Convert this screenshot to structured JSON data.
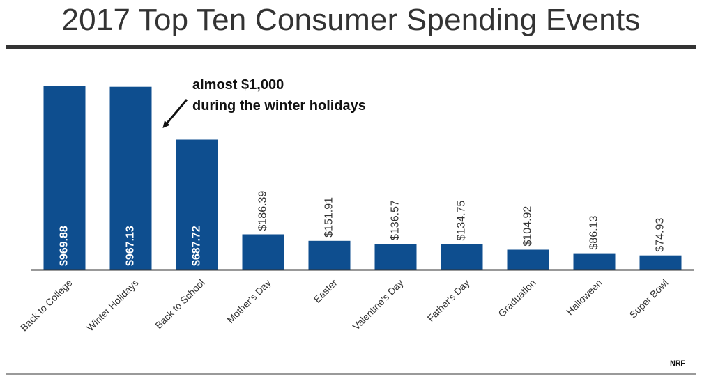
{
  "title": "2017 Top Ten Consumer Spending Events",
  "annotation": {
    "line1": "almost $1,000",
    "line2": "during the winter holidays"
  },
  "source": "NRF",
  "colors": {
    "bar": "#0e4e8f",
    "title": "#333333",
    "axis": "#333333",
    "label": "#333333",
    "inside_label": "#ffffff"
  },
  "chart_data": {
    "type": "bar",
    "title": "2017 Top Ten Consumer Spending Events",
    "xlabel": "",
    "ylabel": "",
    "ylim": [
      0,
      1000
    ],
    "grid": false,
    "legend": "none",
    "categories": [
      "Back to College",
      "Winter Holidays",
      "Back to School",
      "Mother's Day",
      "Easter",
      "Valentine's Day",
      "Father's Day",
      "Graduation",
      "Halloween",
      "Super Bowl"
    ],
    "values": [
      969.88,
      967.13,
      687.72,
      186.39,
      151.91,
      136.57,
      134.75,
      104.92,
      86.13,
      74.93
    ],
    "data_labels": [
      "$969.88",
      "$967.13",
      "$687.72",
      "$186.39",
      "$151.91",
      "$136.57",
      "$134.75",
      "$104.92",
      "$86.13",
      "$74.93"
    ]
  }
}
